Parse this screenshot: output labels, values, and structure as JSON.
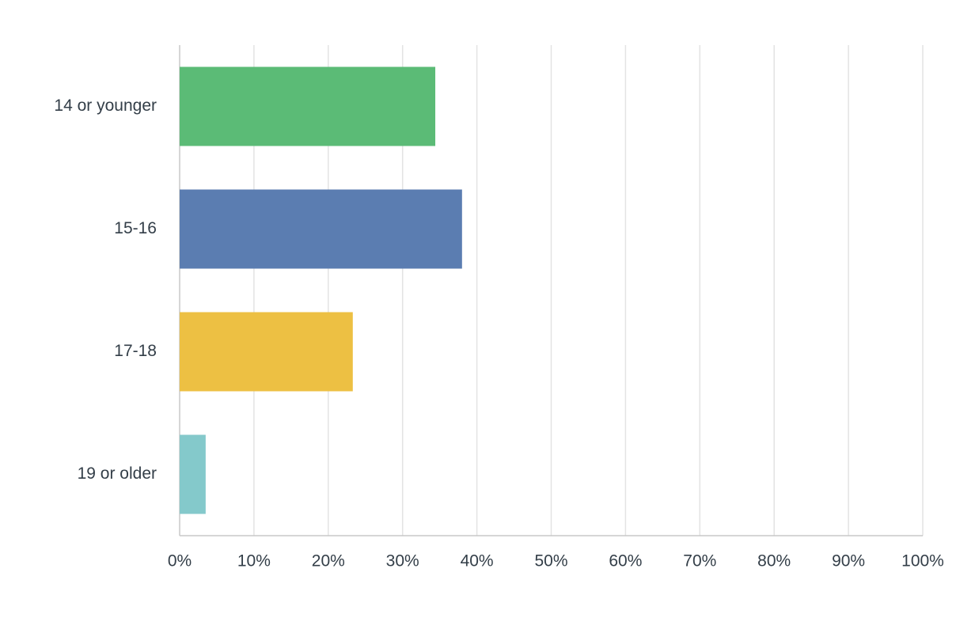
{
  "chart_data": {
    "type": "bar",
    "orientation": "horizontal",
    "categories": [
      "14 or younger",
      "15-16",
      "17-18",
      "19 or older"
    ],
    "values": [
      34.4,
      38.0,
      23.3,
      3.5
    ],
    "colors": [
      "#5bbb76",
      "#5b7db1",
      "#edc043",
      "#84c9cb"
    ],
    "xlim": [
      0,
      100
    ],
    "xticks": [
      {
        "value": 0,
        "label": "0%"
      },
      {
        "value": 10,
        "label": "10%"
      },
      {
        "value": 20,
        "label": "20%"
      },
      {
        "value": 30,
        "label": "30%"
      },
      {
        "value": 40,
        "label": "40%"
      },
      {
        "value": 50,
        "label": "50%"
      },
      {
        "value": 60,
        "label": "60%"
      },
      {
        "value": 70,
        "label": "70%"
      },
      {
        "value": 80,
        "label": "80%"
      },
      {
        "value": 90,
        "label": "90%"
      },
      {
        "value": 100,
        "label": "100%"
      }
    ],
    "grid": true
  }
}
